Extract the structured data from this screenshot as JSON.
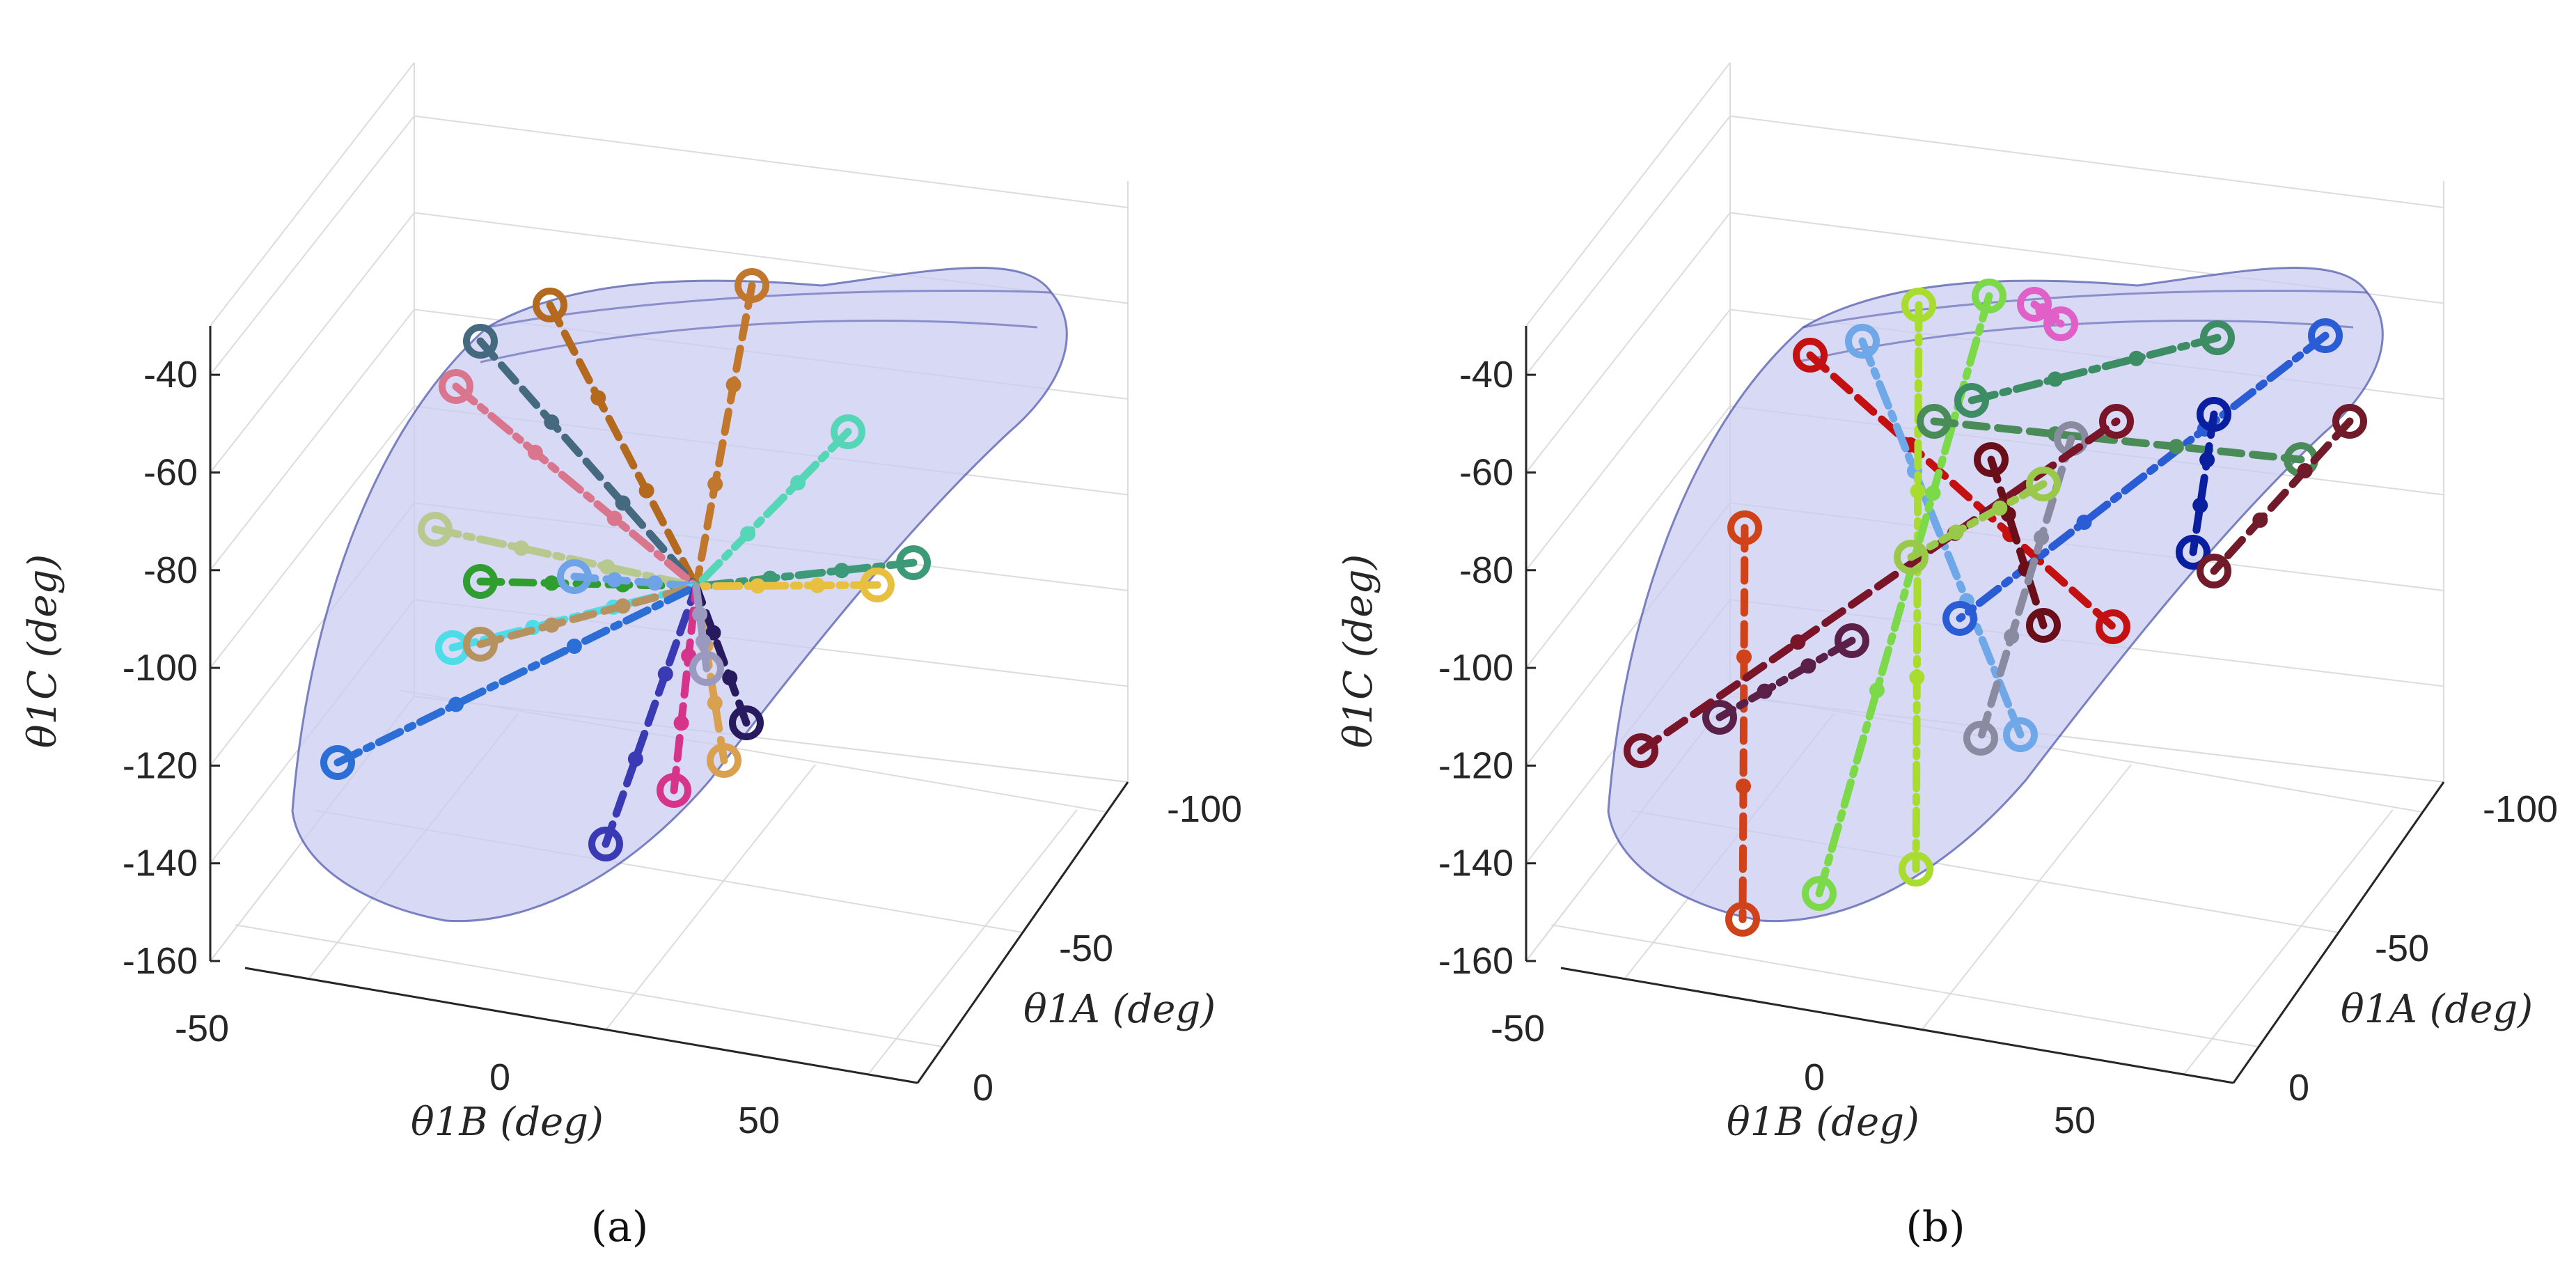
{
  "colors": {
    "surface_fill": "#c9ccf2",
    "surface_edge": "#4a52a8",
    "axis": "#262626",
    "grid": "#dcdcdc"
  },
  "chart_data": [
    {
      "type": "scatter3d",
      "panel": "a",
      "caption": "(a)",
      "xlabel": "θ1B (deg)",
      "ylabel": "θ1A (deg)",
      "zlabel": "θ1C (deg)",
      "x_ticks": [
        "-50",
        "0",
        "50"
      ],
      "y_ticks": [
        "0",
        "-50",
        "-100"
      ],
      "z_ticks": [
        "-40",
        "-60",
        "-80",
        "-100",
        "-120",
        "-140",
        "-160"
      ],
      "zlim": [
        -160,
        -30
      ],
      "hub_z": -87,
      "tracks": [
        {
          "color": "#b36a1e",
          "dash": "dash",
          "start_z": -28
        },
        {
          "color": "#c1782c",
          "dash": "dash",
          "start_z": -25
        },
        {
          "color": "#456a80",
          "dash": "dash",
          "start_z": -37
        },
        {
          "color": "#d9768e",
          "dash": "dashdot",
          "start_z": -46
        },
        {
          "color": "#55d6b6",
          "dash": "dashdot",
          "start_z": -55
        },
        {
          "color": "#b8c98f",
          "dash": "dashdot",
          "start_z": -74
        },
        {
          "color": "#2f9e2f",
          "dash": "dash",
          "start_z": -85
        },
        {
          "color": "#6fa3e8",
          "dash": "dash",
          "start_z": -84
        },
        {
          "color": "#4cdde8",
          "dash": "dashdot",
          "start_z": -98
        },
        {
          "color": "#b59260",
          "dash": "dash",
          "start_z": -97
        },
        {
          "color": "#2a6ed6",
          "dash": "dashdot",
          "start_z": -121
        },
        {
          "color": "#3c9a78",
          "dash": "dashdot",
          "start_z": -80
        },
        {
          "color": "#e8c040",
          "dash": "dashdot",
          "start_z": -84
        },
        {
          "color": "#3a3ab4",
          "dash": "dash",
          "start_z": -137
        },
        {
          "color": "#d6338a",
          "dash": "dash",
          "start_z": -127
        },
        {
          "color": "#d9a050",
          "dash": "dash",
          "start_z": -120
        },
        {
          "color": "#281a5e",
          "dash": "dash",
          "start_z": -113
        },
        {
          "color": "#9a9ac0",
          "dash": "dash",
          "start_z": -101
        }
      ]
    },
    {
      "type": "scatter3d",
      "panel": "b",
      "caption": "(b)",
      "xlabel": "θ1B (deg)",
      "ylabel": "θ1A (deg)",
      "zlabel": "θ1C (deg)",
      "x_ticks": [
        "-50",
        "0",
        "50"
      ],
      "y_ticks": [
        "0",
        "-50",
        "-100"
      ],
      "z_ticks": [
        "-40",
        "-60",
        "-80",
        "-100",
        "-120",
        "-140",
        "-160"
      ],
      "zlim": [
        -160,
        -30
      ],
      "tracks": [
        {
          "color": "#c41010",
          "dash": "dash",
          "start_z": -39,
          "end_z": -94
        },
        {
          "color": "#6fa8e8",
          "dash": "dashdot",
          "start_z": -36,
          "end_z": -114
        },
        {
          "color": "#a8dd30",
          "dash": "dashdot",
          "start_z": -28,
          "end_z": -142
        },
        {
          "color": "#7bd94a",
          "dash": "dashdot",
          "start_z": -27,
          "end_z": -147
        },
        {
          "color": "#e060c8",
          "dash": "dash",
          "start_z": -29,
          "end_z": -32
        },
        {
          "color": "#3c8c64",
          "dash": "dashdot",
          "start_z": -35,
          "end_z": -48
        },
        {
          "color": "#2a5cd6",
          "dash": "dashdot",
          "start_z": -35,
          "end_z": -92
        },
        {
          "color": "#4a8c58",
          "dash": "dash",
          "start_z": -52,
          "end_z": -60
        },
        {
          "color": "#0a1ea0",
          "dash": "dash",
          "start_z": -51,
          "end_z": -78
        },
        {
          "color": "#701a2a",
          "dash": "dash",
          "start_z": -52,
          "end_z": -82
        },
        {
          "color": "#6a0f1a",
          "dash": "dash",
          "start_z": -60,
          "end_z": -93
        },
        {
          "color": "#8a8aa0",
          "dash": "dash",
          "start_z": -56,
          "end_z": -116
        },
        {
          "color": "#d0421a",
          "dash": "dash",
          "start_z": -74,
          "end_z": -152
        },
        {
          "color": "#5a2048",
          "dash": "dashdot",
          "start_z": -96,
          "end_z": -112
        },
        {
          "color": "#7a1428",
          "dash": "dash",
          "start_z": -118,
          "end_z": -53
        },
        {
          "color": "#9ac84a",
          "dash": "dashdot",
          "start_z": -80,
          "end_z": -64
        }
      ]
    }
  ]
}
